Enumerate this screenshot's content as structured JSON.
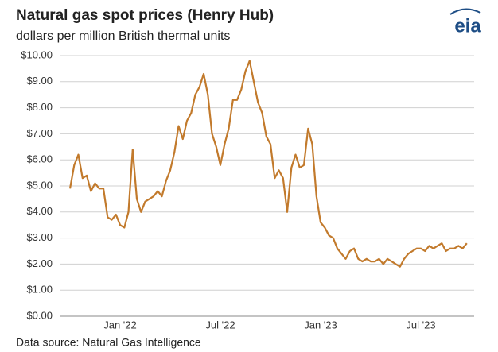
{
  "chart_data": {
    "type": "line",
    "title": "Natural gas spot prices (Henry Hub)",
    "subtitle": "dollars per million British thermal units",
    "source": "Data source: Natural Gas Intelligence",
    "logo": "eia",
    "color": "#c27a2c",
    "grid": true,
    "x": [
      "2021-10",
      "2021-10",
      "2021-10",
      "2021-10",
      "2021-11",
      "2021-11",
      "2021-11",
      "2021-11",
      "2021-12",
      "2021-12",
      "2021-12",
      "2021-12",
      "2022-01",
      "2022-01",
      "2022-01",
      "2022-01",
      "2022-02",
      "2022-02",
      "2022-02",
      "2022-02",
      "2022-03",
      "2022-03",
      "2022-03",
      "2022-03",
      "2022-04",
      "2022-04",
      "2022-04",
      "2022-04",
      "2022-05",
      "2022-05",
      "2022-05",
      "2022-05",
      "2022-06",
      "2022-06",
      "2022-06",
      "2022-06",
      "2022-07",
      "2022-07",
      "2022-07",
      "2022-07",
      "2022-08",
      "2022-08",
      "2022-08",
      "2022-08",
      "2022-09",
      "2022-09",
      "2022-09",
      "2022-09",
      "2022-10",
      "2022-10",
      "2022-10",
      "2022-10",
      "2022-11",
      "2022-11",
      "2022-11",
      "2022-11",
      "2022-12",
      "2022-12",
      "2022-12",
      "2022-12",
      "2023-01",
      "2023-01",
      "2023-01",
      "2023-01",
      "2023-02",
      "2023-02",
      "2023-02",
      "2023-02",
      "2023-03",
      "2023-03",
      "2023-03",
      "2023-03",
      "2023-04",
      "2023-04",
      "2023-04",
      "2023-04",
      "2023-05",
      "2023-05",
      "2023-05",
      "2023-05",
      "2023-06",
      "2023-06",
      "2023-06",
      "2023-06",
      "2023-07",
      "2023-07",
      "2023-07",
      "2023-07",
      "2023-08",
      "2023-08",
      "2023-08",
      "2023-08",
      "2023-09",
      "2023-09",
      "2023-09",
      "2023-09"
    ],
    "values": [
      4.9,
      5.8,
      6.2,
      5.3,
      5.4,
      4.8,
      5.1,
      4.9,
      4.9,
      3.8,
      3.7,
      3.9,
      3.5,
      3.4,
      4.0,
      6.4,
      4.5,
      4.0,
      4.4,
      4.5,
      4.6,
      4.8,
      4.6,
      5.2,
      5.6,
      6.3,
      7.3,
      6.8,
      7.5,
      7.8,
      8.5,
      8.8,
      9.3,
      8.5,
      7.0,
      6.5,
      5.8,
      6.6,
      7.2,
      8.3,
      8.3,
      8.7,
      9.4,
      9.8,
      9.0,
      8.2,
      7.8,
      6.9,
      6.6,
      5.3,
      5.6,
      5.3,
      4.0,
      5.7,
      6.2,
      5.7,
      5.8,
      7.2,
      6.6,
      4.6,
      3.6,
      3.4,
      3.1,
      3.0,
      2.6,
      2.4,
      2.2,
      2.5,
      2.6,
      2.2,
      2.1,
      2.2,
      2.1,
      2.1,
      2.2,
      2.0,
      2.2,
      2.1,
      2.0,
      1.9,
      2.2,
      2.4,
      2.5,
      2.6,
      2.6,
      2.5,
      2.7,
      2.6,
      2.7,
      2.8,
      2.5,
      2.6,
      2.6,
      2.7,
      2.6,
      2.8
    ],
    "xticks": [
      {
        "value": "2022-01",
        "label": "Jan '22"
      },
      {
        "value": "2022-07",
        "label": "Jul '22"
      },
      {
        "value": "2023-01",
        "label": "Jan '23"
      },
      {
        "value": "2023-07",
        "label": "Jul '23"
      }
    ],
    "ylim": [
      0,
      10
    ],
    "yticks": [
      {
        "value": 0,
        "label": "$0.00"
      },
      {
        "value": 1,
        "label": "$1.00"
      },
      {
        "value": 2,
        "label": "$2.00"
      },
      {
        "value": 3,
        "label": "$3.00"
      },
      {
        "value": 4,
        "label": "$4.00"
      },
      {
        "value": 5,
        "label": "$5.00"
      },
      {
        "value": 6,
        "label": "$6.00"
      },
      {
        "value": 7,
        "label": "$7.00"
      },
      {
        "value": 8,
        "label": "$8.00"
      },
      {
        "value": 9,
        "label": "$9.00"
      },
      {
        "value": 10,
        "label": "$10.00"
      }
    ]
  }
}
